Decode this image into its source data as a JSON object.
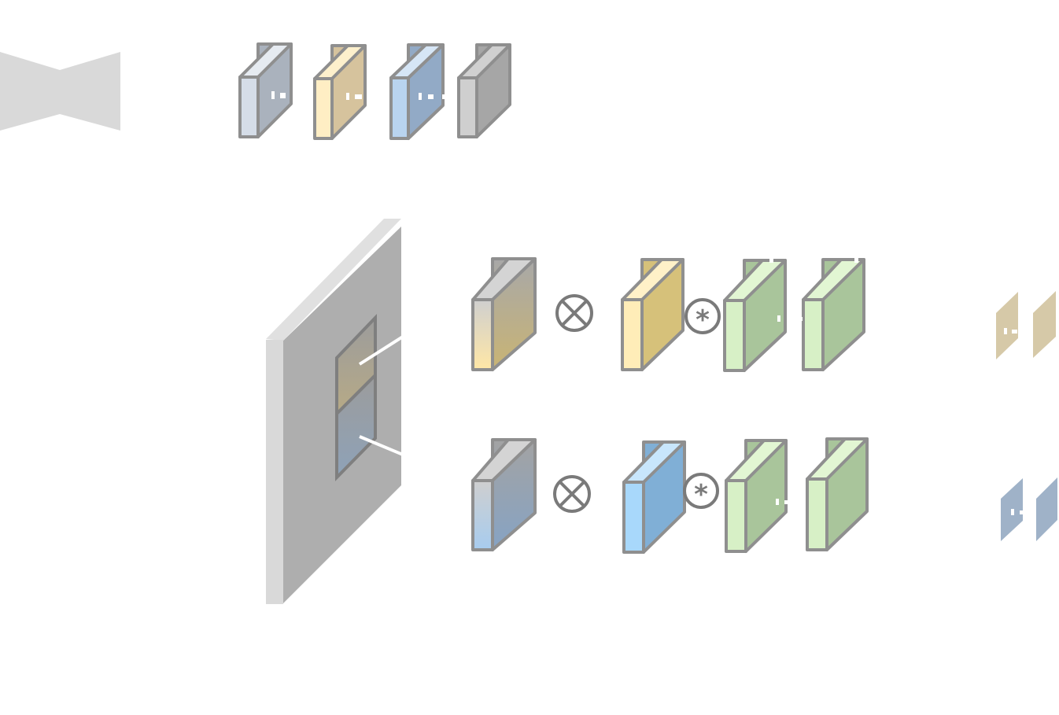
{
  "diagram": {
    "background": "#ffffff",
    "stroke_color": "#8f8f8f",
    "operators": {
      "multiply_symbol": "⊗",
      "convolve_symbol": "*"
    },
    "icons": [
      "bowtie-icon",
      "feature-block-icon",
      "multiply-operator-icon",
      "convolve-operator-icon",
      "large-feature-map-icon"
    ],
    "colors": {
      "light_gray": "#d9d9d9",
      "mid_gray": "#aeaeae",
      "gray_block": "#a6a6a6",
      "slate": "#aab2bd",
      "tan": "#d6c39d",
      "steel_blue": "#92aac6",
      "gold": "#d6c17a",
      "sky_blue": "#80afd6",
      "sage_green": "#a9c59b",
      "light_green": "#d7f0c6"
    },
    "top_row_blocks": [
      "slate",
      "tan",
      "steel-blue",
      "gray"
    ],
    "upper_branch_blocks": [
      "gray-gold-gradient",
      "gold",
      "green",
      "green"
    ],
    "lower_branch_blocks": [
      "gray-blue-gradient",
      "blue",
      "green",
      "green"
    ]
  }
}
